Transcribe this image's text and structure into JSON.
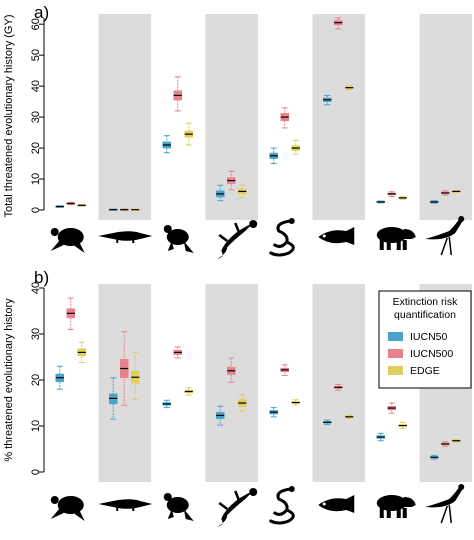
{
  "chart_data": [
    {
      "type": "box",
      "panel_label": "a)",
      "ylabel": "Total threatened evolutionary history (GY)",
      "ylim": [
        0,
        62
      ],
      "yticks": [
        0,
        10,
        20,
        30,
        40,
        50,
        60
      ],
      "y_tick_labels": [
        "0",
        "10",
        "20",
        "30",
        "40",
        "50",
        "60"
      ],
      "categories": [
        "turtle",
        "crocodile",
        "frog",
        "salamander",
        "snake",
        "fish",
        "tapir",
        "bird"
      ],
      "category_icons": [
        "turtle-icon",
        "crocodile-icon",
        "frog-icon",
        "salamander-icon",
        "snake-icon",
        "fish-icon",
        "tapir-icon",
        "secretary-bird-icon"
      ],
      "shaded_columns": [
        1,
        3,
        5,
        7
      ],
      "series": [
        {
          "name": "IUCN50",
          "color": "#4aa3c8",
          "stats": [
            [
              0.9,
              1.0,
              1.1,
              1.2,
              1.4
            ],
            [
              0.1,
              0.1,
              0.1,
              0.1,
              0.1
            ],
            [
              18.5,
              20.0,
              21.0,
              22.0,
              24.0
            ],
            [
              3.0,
              4.2,
              5.2,
              6.2,
              8.0
            ],
            [
              15.0,
              16.6,
              17.5,
              18.4,
              20.0
            ],
            [
              34.0,
              35.0,
              35.6,
              36.2,
              37.0
            ],
            [
              2.3,
              2.5,
              2.6,
              2.7,
              2.9
            ],
            [
              2.2,
              2.4,
              2.6,
              2.8,
              3.0
            ]
          ]
        },
        {
          "name": "IUCN500",
          "color": "#e8828a",
          "stats": [
            [
              1.7,
              1.9,
              2.1,
              2.3,
              2.5
            ],
            [
              0.1,
              0.1,
              0.1,
              0.1,
              0.1
            ],
            [
              32.0,
              35.5,
              37.0,
              38.5,
              43.0
            ],
            [
              6.5,
              8.5,
              9.5,
              10.5,
              12.5
            ],
            [
              26.5,
              28.8,
              30.0,
              31.2,
              33.0
            ],
            [
              58.5,
              59.8,
              60.5,
              61.2,
              62.0
            ],
            [
              4.4,
              4.9,
              5.2,
              5.5,
              5.9
            ],
            [
              4.8,
              5.2,
              5.5,
              5.8,
              6.2
            ]
          ]
        },
        {
          "name": "EDGE",
          "color": "#e0cf5a",
          "stats": [
            [
              1.2,
              1.4,
              1.5,
              1.6,
              1.8
            ],
            [
              0.1,
              0.1,
              0.1,
              0.1,
              0.1
            ],
            [
              21.0,
              23.5,
              24.5,
              25.5,
              28.0
            ],
            [
              4.0,
              5.2,
              6.0,
              6.8,
              8.0
            ],
            [
              18.0,
              19.2,
              20.0,
              20.8,
              22.5
            ],
            [
              38.8,
              39.2,
              39.5,
              39.8,
              40.2
            ],
            [
              3.5,
              3.7,
              3.9,
              4.1,
              4.3
            ],
            [
              5.6,
              5.8,
              6.0,
              6.2,
              6.4
            ]
          ]
        }
      ]
    },
    {
      "type": "box",
      "panel_label": "b)",
      "ylabel": "% threatened evolutionary history",
      "ylim": [
        0,
        40
      ],
      "yticks": [
        0,
        10,
        20,
        30,
        40
      ],
      "y_tick_labels": [
        "0",
        "10",
        "20",
        "30",
        "40"
      ],
      "categories": [
        "turtle",
        "crocodile",
        "frog",
        "salamander",
        "snake",
        "fish",
        "tapir",
        "bird"
      ],
      "category_icons": [
        "turtle-icon",
        "crocodile-icon",
        "frog-icon",
        "salamander-icon",
        "snake-icon",
        "fish-icon",
        "tapir-icon",
        "secretary-bird-icon"
      ],
      "shaded_columns": [
        1,
        3,
        5,
        7
      ],
      "series": [
        {
          "name": "IUCN50",
          "color": "#4aa3c8",
          "stats": [
            [
              18.0,
              19.6,
              20.5,
              21.3,
              23.0
            ],
            [
              11.5,
              14.8,
              16.0,
              17.0,
              20.5
            ],
            [
              14.0,
              14.5,
              14.8,
              15.1,
              15.6
            ],
            [
              10.2,
              11.6,
              12.3,
              13.0,
              14.3
            ],
            [
              12.0,
              12.6,
              13.0,
              13.4,
              14.0
            ],
            [
              10.3,
              10.6,
              10.8,
              11.0,
              11.3
            ],
            [
              6.8,
              7.3,
              7.6,
              7.9,
              8.4
            ],
            [
              2.8,
              3.1,
              3.2,
              3.3,
              3.6
            ]
          ]
        },
        {
          "name": "IUCN500",
          "color": "#e8828a",
          "stats": [
            [
              31.0,
              33.5,
              34.5,
              35.5,
              37.8
            ],
            [
              14.5,
              20.5,
              22.5,
              24.5,
              30.5
            ],
            [
              24.8,
              25.5,
              26.0,
              26.5,
              27.2
            ],
            [
              19.5,
              21.2,
              22.0,
              22.8,
              24.8
            ],
            [
              21.0,
              21.8,
              22.2,
              22.6,
              23.3
            ],
            [
              17.8,
              18.2,
              18.4,
              18.6,
              19.0
            ],
            [
              12.8,
              13.5,
              13.9,
              14.3,
              15.0
            ],
            [
              5.6,
              5.9,
              6.1,
              6.3,
              6.6
            ]
          ]
        },
        {
          "name": "EDGE",
          "color": "#e0cf5a",
          "stats": [
            [
              23.8,
              25.2,
              26.0,
              26.8,
              28.2
            ],
            [
              15.8,
              19.3,
              20.6,
              21.9,
              26.0
            ],
            [
              16.7,
              17.2,
              17.5,
              17.8,
              18.3
            ],
            [
              13.2,
              14.3,
              15.0,
              15.7,
              16.8
            ],
            [
              14.6,
              14.9,
              15.1,
              15.3,
              15.7
            ],
            [
              11.7,
              11.9,
              12.0,
              12.1,
              12.3
            ],
            [
              9.5,
              9.9,
              10.1,
              10.3,
              10.8
            ],
            [
              6.5,
              6.7,
              6.8,
              6.9,
              7.1
            ]
          ]
        }
      ]
    }
  ],
  "legend": {
    "title": "Extinction risk\nquantification",
    "title_line1": "Extinction risk",
    "title_line2": "quantification",
    "placement": "top-right of panel b",
    "items": [
      "IUCN50",
      "IUCN500",
      "EDGE"
    ]
  }
}
